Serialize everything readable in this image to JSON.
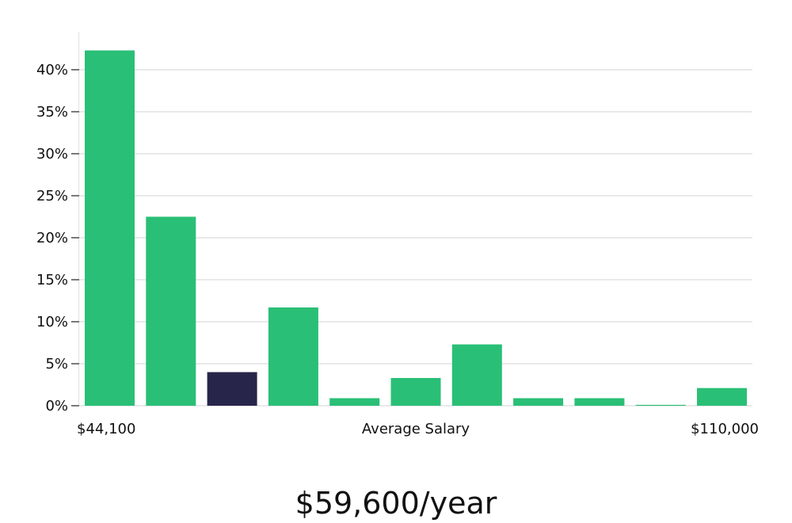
{
  "chart_data": {
    "type": "bar",
    "categories": [
      "",
      "",
      "",
      "",
      "",
      "",
      "",
      "",
      "",
      "",
      ""
    ],
    "values": [
      42.3,
      22.5,
      4.0,
      11.7,
      0.9,
      3.3,
      7.3,
      0.9,
      0.9,
      0.1,
      2.1
    ],
    "highlight_index": 2,
    "ylim": [
      0,
      45
    ],
    "yticks": [
      0,
      5,
      10,
      15,
      20,
      25,
      30,
      35,
      40
    ],
    "ytick_labels": [
      "0%",
      "5%",
      "10%",
      "15%",
      "20%",
      "25%",
      "30%",
      "35%",
      "40%"
    ],
    "grid": true,
    "x_min_label": "$44,100",
    "xlabel": "Average Salary",
    "x_max_label": "$110,000",
    "colors": {
      "bar": "#2abf76",
      "highlight": "#28254a",
      "grid": "#e2e2e2"
    }
  },
  "headline": "$59,600/year"
}
